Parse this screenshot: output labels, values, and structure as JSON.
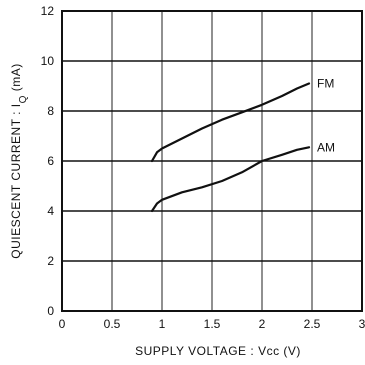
{
  "chart_data": {
    "type": "line",
    "xlabel": "SUPPLY  VOLTAGE : Vcc  (V)",
    "ylabel": {
      "prefix": "QUIESCENT  CURRENT : I",
      "subscript": "Q",
      "suffix": "  (mA)"
    },
    "xlim": [
      0,
      3
    ],
    "ylim": [
      0,
      12
    ],
    "xticks": [
      {
        "value": 0,
        "label": "0"
      },
      {
        "value": 0.5,
        "label": "0.5"
      },
      {
        "value": 1,
        "label": "1"
      },
      {
        "value": 1.5,
        "label": "1.5"
      },
      {
        "value": 2,
        "label": "2"
      },
      {
        "value": 2.5,
        "label": "2.5"
      },
      {
        "value": 3,
        "label": "3"
      }
    ],
    "yticks": [
      {
        "value": 0,
        "label": "0"
      },
      {
        "value": 2,
        "label": "2"
      },
      {
        "value": 4,
        "label": "4"
      },
      {
        "value": 6,
        "label": "6"
      },
      {
        "value": 8,
        "label": "8"
      },
      {
        "value": 10,
        "label": "10"
      },
      {
        "value": 12,
        "label": "12"
      }
    ],
    "grid": true,
    "series": [
      {
        "name": "FM",
        "label_at": {
          "x": 2.55,
          "y": 9.1
        },
        "points": [
          [
            0.9,
            6.0
          ],
          [
            0.95,
            6.35
          ],
          [
            1.0,
            6.5
          ],
          [
            1.2,
            6.9
          ],
          [
            1.4,
            7.3
          ],
          [
            1.6,
            7.65
          ],
          [
            1.8,
            7.95
          ],
          [
            2.0,
            8.25
          ],
          [
            2.2,
            8.6
          ],
          [
            2.35,
            8.9
          ],
          [
            2.47,
            9.1
          ]
        ]
      },
      {
        "name": "AM",
        "label_at": {
          "x": 2.55,
          "y": 6.55
        },
        "points": [
          [
            0.9,
            4.0
          ],
          [
            0.95,
            4.3
          ],
          [
            1.0,
            4.45
          ],
          [
            1.2,
            4.75
          ],
          [
            1.4,
            4.95
          ],
          [
            1.6,
            5.2
          ],
          [
            1.8,
            5.55
          ],
          [
            2.0,
            6.0
          ],
          [
            2.2,
            6.25
          ],
          [
            2.35,
            6.45
          ],
          [
            2.47,
            6.55
          ]
        ]
      }
    ]
  }
}
